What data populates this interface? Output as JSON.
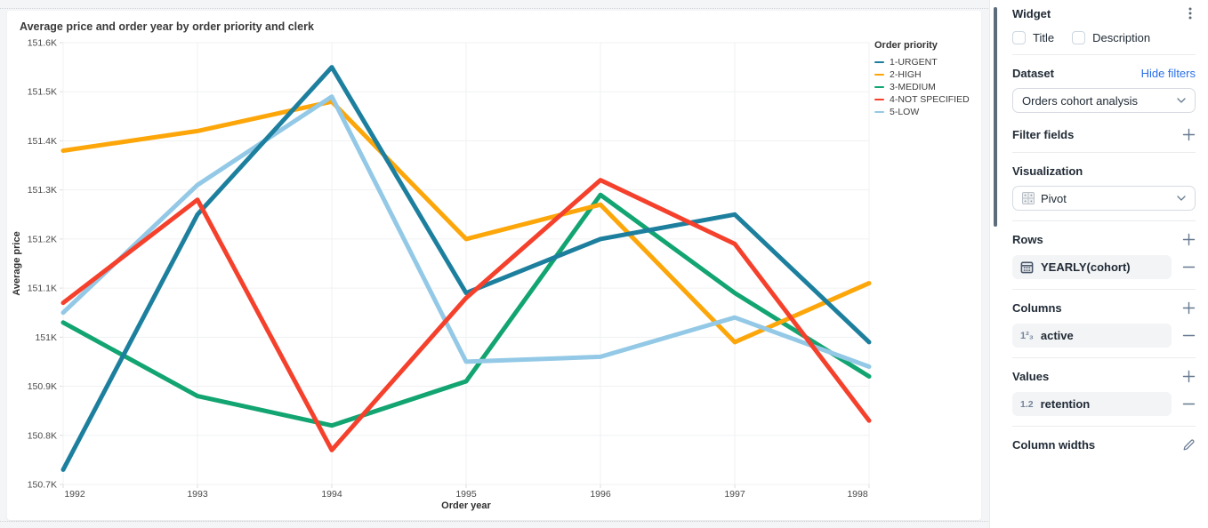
{
  "chart": {
    "title": "Average price and order year by order priority and clerk"
  },
  "chart_data": {
    "type": "line",
    "title": "Average price and order year by order priority and clerk",
    "xlabel": "Order year",
    "ylabel": "Average price",
    "x_labels": [
      "1992",
      "1993",
      "1994",
      "1995",
      "1996",
      "1997",
      "1998"
    ],
    "ylim": [
      150.7,
      151.6
    ],
    "y_tick_values": [
      150.7,
      150.8,
      150.9,
      151.0,
      151.1,
      151.2,
      151.3,
      151.4,
      151.5,
      151.6
    ],
    "y_tick_labels": [
      "150.7K",
      "150.8K",
      "150.9K",
      "151K",
      "151.1K",
      "151.2K",
      "151.3K",
      "151.4K",
      "151.5K",
      "151.6K"
    ],
    "grid": true,
    "legend_title": "Order priority",
    "legend_position": "right",
    "series": [
      {
        "name": "1-URGENT",
        "color": "#1d7f9e",
        "values": [
          150.73,
          151.25,
          151.55,
          151.09,
          151.2,
          151.25,
          150.99
        ]
      },
      {
        "name": "2-HIGH",
        "color": "#fca60a",
        "values": [
          151.38,
          151.42,
          151.48,
          151.2,
          151.27,
          150.99,
          151.11
        ]
      },
      {
        "name": "3-MEDIUM",
        "color": "#12a471",
        "values": [
          151.03,
          150.88,
          150.82,
          150.91,
          151.29,
          151.09,
          150.92
        ]
      },
      {
        "name": "4-NOT SPECIFIED",
        "color": "#f5402c",
        "values": [
          151.07,
          151.28,
          150.77,
          151.08,
          151.32,
          151.19,
          150.83
        ]
      },
      {
        "name": "5-LOW",
        "color": "#93c9e6",
        "values": [
          151.05,
          151.31,
          151.49,
          150.95,
          150.96,
          151.04,
          150.94
        ]
      }
    ],
    "draw_order": [
      2,
      1,
      4,
      0,
      3
    ]
  },
  "panel": {
    "widget": {
      "label": "Widget",
      "checkboxes": [
        {
          "label": "Title",
          "checked": false
        },
        {
          "label": "Description",
          "checked": false
        }
      ]
    },
    "dataset": {
      "label": "Dataset",
      "link": "Hide filters",
      "selected": "Orders cohort analysis"
    },
    "filter_fields": {
      "label": "Filter fields"
    },
    "visualization": {
      "label": "Visualization",
      "selected": "Pivot"
    },
    "rows": {
      "label": "Rows",
      "items": [
        {
          "label": "YEARLY(cohort)",
          "icon": "calendar-icon"
        }
      ]
    },
    "columns": {
      "label": "Columns",
      "items": [
        {
          "label": "active",
          "icon": "field-number-icon",
          "icon_text": "1²₃"
        }
      ]
    },
    "values": {
      "label": "Values",
      "items": [
        {
          "label": "retention",
          "icon": "field-decimal-icon",
          "icon_text": "1.2"
        }
      ]
    },
    "column_widths": {
      "label": "Column widths"
    }
  }
}
